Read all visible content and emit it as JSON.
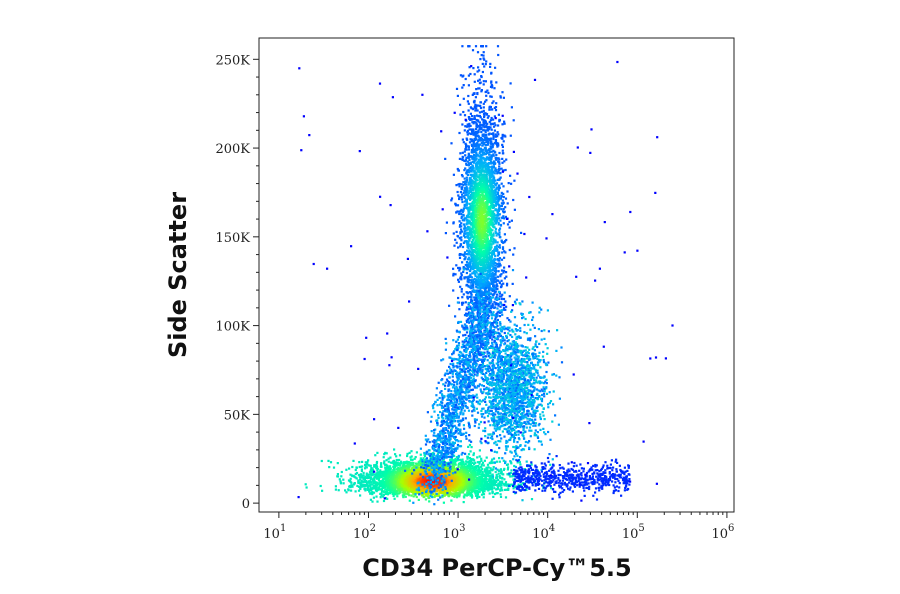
{
  "chart_data": {
    "type": "scatter",
    "subtype": "flow-cytometry-density-plot",
    "title": "",
    "xlabel": "CD34 PerCP-Cy™5.5",
    "ylabel": "Side Scatter",
    "x_scale": "log",
    "x_range": [
      6,
      1200000
    ],
    "y_range": [
      -5000,
      262000
    ],
    "x_ticks": [
      {
        "value": 10,
        "base": "10",
        "exp": "1"
      },
      {
        "value": 100,
        "base": "10",
        "exp": "2"
      },
      {
        "value": 1000,
        "base": "10",
        "exp": "3"
      },
      {
        "value": 10000,
        "base": "10",
        "exp": "4"
      },
      {
        "value": 100000,
        "base": "10",
        "exp": "5"
      },
      {
        "value": 1000000,
        "base": "10",
        "exp": "6"
      }
    ],
    "y_ticks": [
      {
        "value": 0,
        "label": "0"
      },
      {
        "value": 50000,
        "label": "50K"
      },
      {
        "value": 100000,
        "label": "100K"
      },
      {
        "value": 150000,
        "label": "150K"
      },
      {
        "value": 200000,
        "label": "200K"
      },
      {
        "value": 250000,
        "label": "250K"
      }
    ],
    "grid": false,
    "colormap": [
      "#0000ff",
      "#00aaff",
      "#00ffaa",
      "#aaff00",
      "#ffaa00",
      "#ff0000"
    ],
    "populations": [
      {
        "x_center": 500,
        "y_center": 13000,
        "weight": 1.0
      },
      {
        "x_center": 1800,
        "y_center": 160000,
        "weight": 0.55
      },
      {
        "x_center": 4000,
        "y_center": 65000,
        "weight": 0.3
      }
    ]
  }
}
